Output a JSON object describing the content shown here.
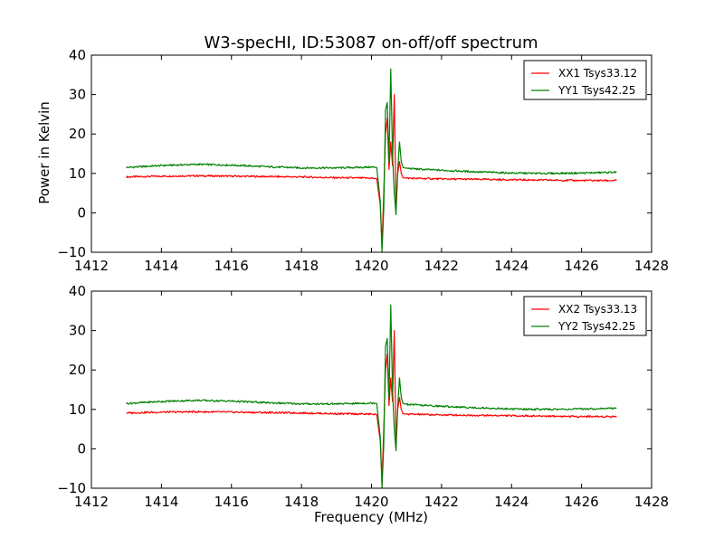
{
  "figure": {
    "title": "W3-specHI, ID:53087 on-off/off spectrum",
    "xlabel": "Frequency (MHz)",
    "ylabel": "Power in Kelvin"
  },
  "chart_data": [
    {
      "type": "line",
      "title": "W3-specHI, ID:53087 on-off/off spectrum",
      "xlabel": "",
      "ylabel": "Power in Kelvin",
      "xlim": [
        1412,
        1428
      ],
      "ylim": [
        -10,
        40
      ],
      "x_ticks": [
        "1412",
        "1414",
        "1416",
        "1418",
        "1420",
        "1422",
        "1424",
        "1426",
        "1428"
      ],
      "y_ticks": [
        "−10",
        "0",
        "10",
        "20",
        "30",
        "40"
      ],
      "legend_position": "top-right",
      "series": [
        {
          "name": "XX1 Tsys33.12",
          "color": "#ff0000",
          "x": [
            1413.0,
            1414.0,
            1415.0,
            1416.0,
            1417.0,
            1418.0,
            1419.0,
            1420.0,
            1420.15,
            1420.25,
            1420.3,
            1420.35,
            1420.4,
            1420.45,
            1420.5,
            1420.55,
            1420.6,
            1420.65,
            1420.7,
            1420.75,
            1420.8,
            1420.85,
            1420.9,
            1421.0,
            1421.5,
            1422.0,
            1423.0,
            1424.0,
            1425.0,
            1426.0,
            1427.0
          ],
          "y": [
            9.1,
            9.3,
            9.4,
            9.3,
            9.2,
            9.1,
            8.9,
            8.8,
            8.7,
            2.0,
            -8.0,
            5.0,
            20.0,
            24.0,
            11.0,
            18.0,
            12.0,
            30.0,
            2.0,
            10.0,
            13.0,
            10.0,
            8.9,
            8.8,
            8.7,
            8.6,
            8.5,
            8.4,
            8.3,
            8.2,
            8.2
          ]
        },
        {
          "name": "YY1 Tsys42.25",
          "color": "#008000",
          "x": [
            1413.0,
            1414.0,
            1415.0,
            1416.0,
            1417.0,
            1418.0,
            1419.0,
            1420.0,
            1420.15,
            1420.25,
            1420.3,
            1420.35,
            1420.4,
            1420.45,
            1420.5,
            1420.55,
            1420.6,
            1420.65,
            1420.7,
            1420.75,
            1420.8,
            1420.85,
            1420.9,
            1421.0,
            1421.5,
            1422.0,
            1423.0,
            1424.0,
            1425.0,
            1426.0,
            1427.0
          ],
          "y": [
            11.5,
            12.0,
            12.3,
            12.1,
            11.7,
            11.4,
            11.4,
            11.6,
            11.5,
            3.0,
            -10.0,
            1.0,
            26.0,
            28.0,
            13.0,
            36.5,
            15.0,
            5.0,
            -0.5,
            11.0,
            18.0,
            13.0,
            11.5,
            11.3,
            11.0,
            10.8,
            10.4,
            10.1,
            10.0,
            10.1,
            10.3
          ]
        }
      ]
    },
    {
      "type": "line",
      "title": "",
      "xlabel": "Frequency (MHz)",
      "ylabel": "",
      "xlim": [
        1412,
        1428
      ],
      "ylim": [
        -10,
        40
      ],
      "x_ticks": [
        "1412",
        "1414",
        "1416",
        "1418",
        "1420",
        "1422",
        "1424",
        "1426",
        "1428"
      ],
      "y_ticks": [
        "−10",
        "0",
        "10",
        "20",
        "30",
        "40"
      ],
      "legend_position": "top-right",
      "series": [
        {
          "name": "XX2 Tsys33.13",
          "color": "#ff0000",
          "x": [
            1413.0,
            1414.0,
            1415.0,
            1416.0,
            1417.0,
            1418.0,
            1419.0,
            1420.0,
            1420.15,
            1420.25,
            1420.3,
            1420.35,
            1420.4,
            1420.45,
            1420.5,
            1420.55,
            1420.6,
            1420.65,
            1420.7,
            1420.75,
            1420.8,
            1420.85,
            1420.9,
            1421.0,
            1421.5,
            1422.0,
            1423.0,
            1424.0,
            1425.0,
            1426.0,
            1427.0
          ],
          "y": [
            9.1,
            9.3,
            9.4,
            9.3,
            9.2,
            9.1,
            8.9,
            8.8,
            8.7,
            2.0,
            -8.0,
            5.0,
            20.0,
            24.0,
            11.0,
            18.0,
            12.0,
            30.0,
            2.0,
            10.0,
            13.0,
            10.0,
            8.9,
            8.8,
            8.7,
            8.6,
            8.5,
            8.4,
            8.3,
            8.2,
            8.2
          ]
        },
        {
          "name": "YY2 Tsys42.25",
          "color": "#008000",
          "x": [
            1413.0,
            1414.0,
            1415.0,
            1416.0,
            1417.0,
            1418.0,
            1419.0,
            1420.0,
            1420.15,
            1420.25,
            1420.3,
            1420.35,
            1420.4,
            1420.45,
            1420.5,
            1420.55,
            1420.6,
            1420.65,
            1420.7,
            1420.75,
            1420.8,
            1420.85,
            1420.9,
            1421.0,
            1421.5,
            1422.0,
            1423.0,
            1424.0,
            1425.0,
            1426.0,
            1427.0
          ],
          "y": [
            11.5,
            12.0,
            12.3,
            12.1,
            11.7,
            11.4,
            11.4,
            11.6,
            11.5,
            3.0,
            -10.0,
            1.0,
            26.0,
            28.0,
            13.0,
            36.5,
            15.0,
            5.0,
            -0.5,
            11.0,
            18.0,
            13.0,
            11.5,
            11.3,
            11.0,
            10.8,
            10.4,
            10.1,
            10.0,
            10.1,
            10.3
          ]
        }
      ]
    }
  ]
}
